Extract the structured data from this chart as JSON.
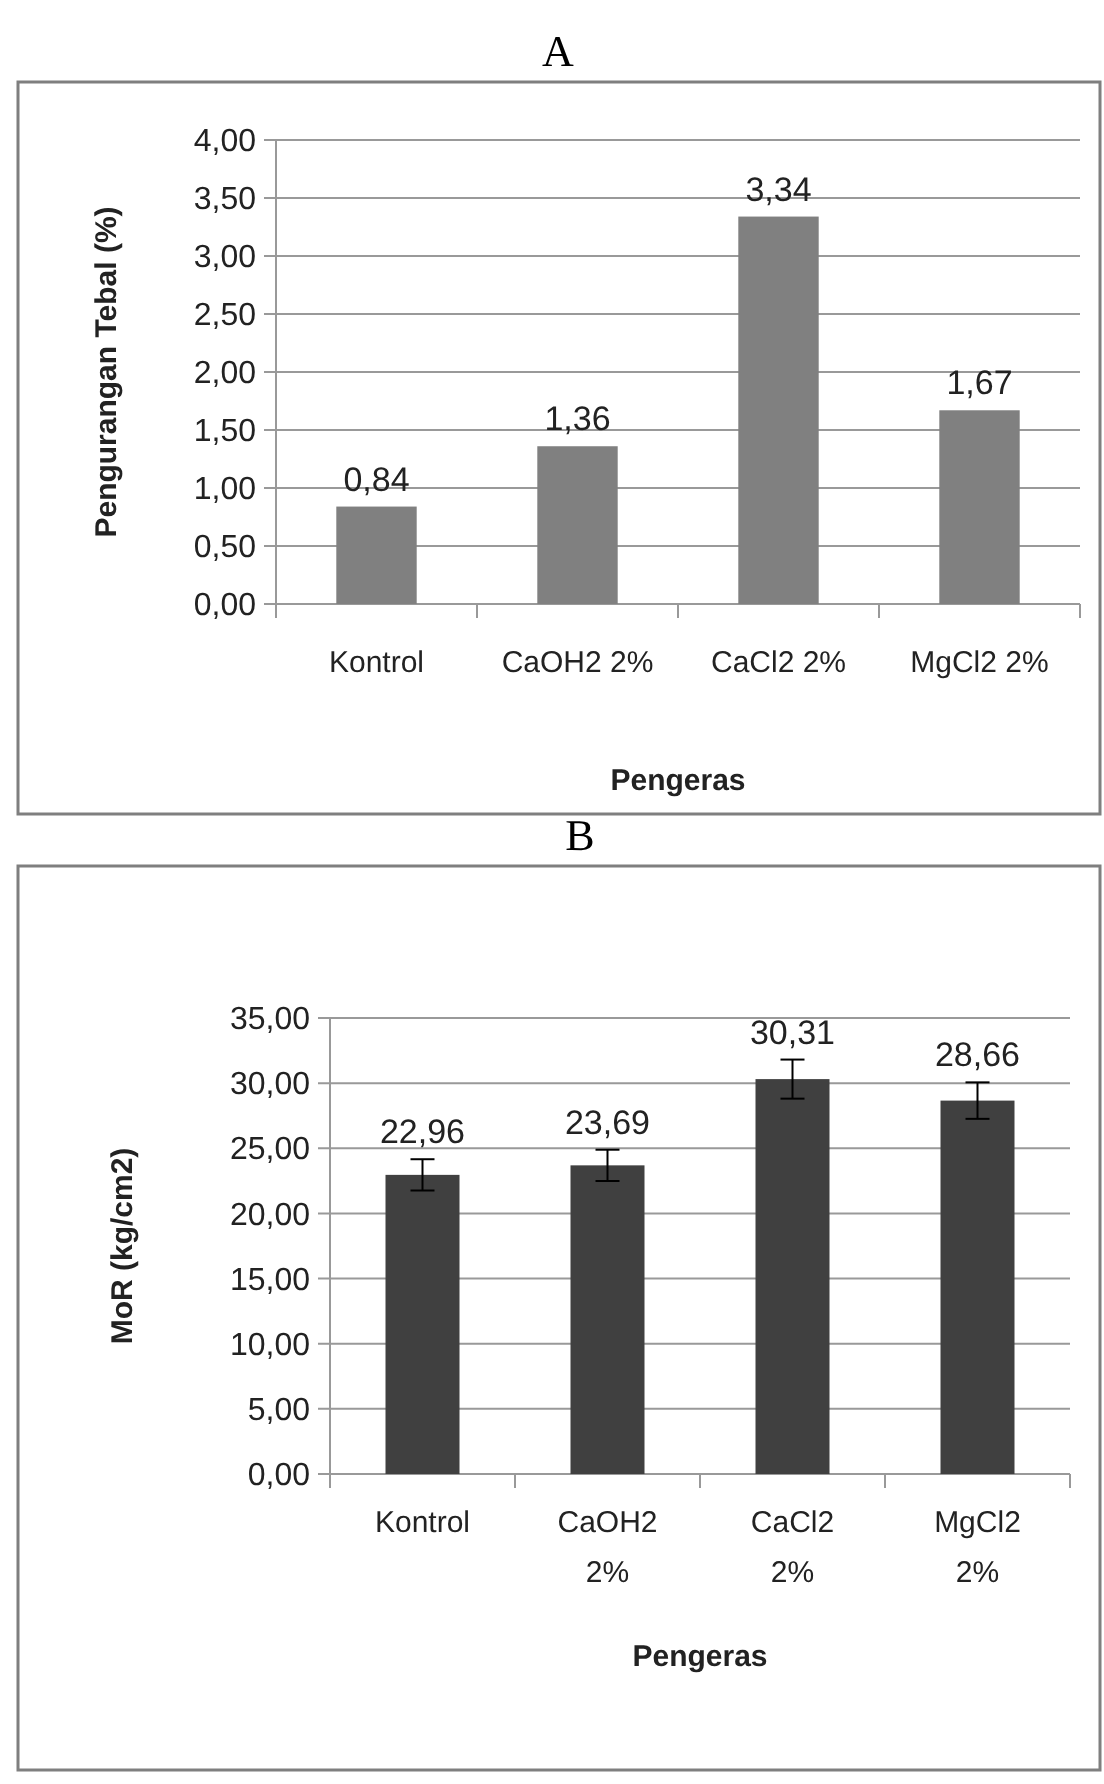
{
  "chart_data": [
    {
      "type": "bar",
      "title": "A",
      "xlabel": "Pengeras",
      "ylabel": "Pengurangan Tebal (%)",
      "categories": [
        "Kontrol",
        "CaOH2 2%",
        "CaCl2 2%",
        "MgCl2 2%"
      ],
      "values": [
        0.84,
        1.36,
        3.34,
        1.67
      ],
      "value_labels": [
        "0,84",
        "1,36",
        "3,34",
        "1,67"
      ],
      "color": "#808080",
      "ylim": [
        0,
        4
      ],
      "yticks": [
        {
          "value": 0,
          "label": "0,00"
        },
        {
          "value": 0.5,
          "label": "0,50"
        },
        {
          "value": 1,
          "label": "1,00"
        },
        {
          "value": 1.5,
          "label": "1,50"
        },
        {
          "value": 2,
          "label": "2,00"
        },
        {
          "value": 2.5,
          "label": "2,50"
        },
        {
          "value": 3,
          "label": "3,00"
        },
        {
          "value": 3.5,
          "label": "3,50"
        },
        {
          "value": 4,
          "label": "4,00"
        }
      ],
      "grid": "y"
    },
    {
      "type": "bar",
      "title": "B",
      "xlabel": "Pengeras",
      "ylabel": "MoR (kg/cm2)",
      "categories": [
        "Kontrol",
        "CaOH2 2%",
        "CaCl2 2%",
        "MgCl2 2%"
      ],
      "values": [
        22.96,
        23.69,
        30.31,
        28.66
      ],
      "value_labels": [
        "22,96",
        "23,69",
        "30,31",
        "28,66"
      ],
      "errors": [
        1.2,
        1.2,
        1.5,
        1.4
      ],
      "color": "#404040",
      "ylim": [
        0,
        35
      ],
      "yticks": [
        {
          "value": 0,
          "label": "0,00"
        },
        {
          "value": 5,
          "label": "5,00"
        },
        {
          "value": 10,
          "label": "10,00"
        },
        {
          "value": 15,
          "label": "15,00"
        },
        {
          "value": 20,
          "label": "20,00"
        },
        {
          "value": 25,
          "label": "25,00"
        },
        {
          "value": 30,
          "label": "30,00"
        },
        {
          "value": 35,
          "label": "35,00"
        }
      ],
      "grid": "y"
    }
  ]
}
